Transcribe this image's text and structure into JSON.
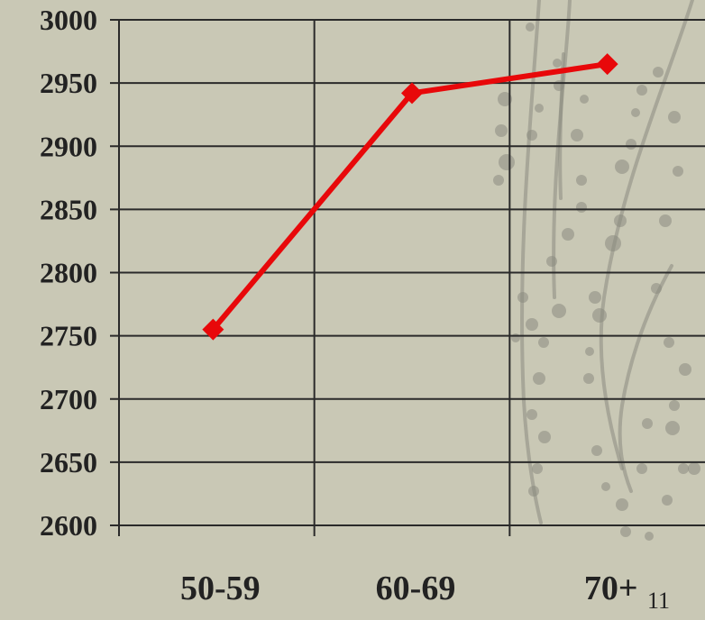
{
  "slide": {
    "page_number": "11"
  },
  "colors": {
    "background": "#c9c8b5",
    "series_line": "#e8080a",
    "gridline": "#2a2a2a",
    "text": "#222222",
    "decoration": "#8a8a80"
  },
  "chart_data": {
    "type": "line",
    "categories": [
      "50-59",
      "60-69",
      "70+"
    ],
    "series": [
      {
        "values": [
          2755,
          2942,
          2965
        ]
      }
    ],
    "ylim": [
      2600,
      3000
    ],
    "yticks": [
      3000,
      2950,
      2900,
      2850,
      2800,
      2750,
      2700,
      2650,
      2600
    ],
    "ytick_labels": [
      "3000",
      "2950",
      "2900",
      "2850",
      "2800",
      "2750",
      "2700",
      "2650",
      "2600"
    ],
    "grid": true,
    "legend": "none",
    "marker": "diamond"
  }
}
